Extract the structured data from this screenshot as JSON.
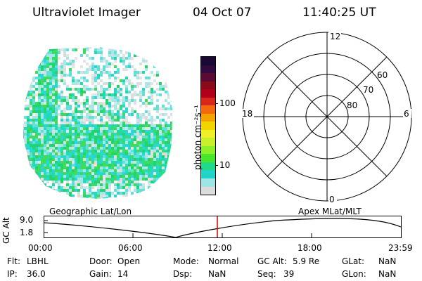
{
  "header": {
    "instrument": "Ultraviolet Imager",
    "date": "04 Oct 07",
    "time": "11:40:25 UT"
  },
  "colorbar": {
    "unit_label": "photon cm⁻²s⁻¹",
    "ticks": [
      "100",
      "10"
    ],
    "colors": [
      "#1a0a33",
      "#330a40",
      "#5a0a33",
      "#8a0a1a",
      "#b3001a",
      "#d9261a",
      "#f26a0d",
      "#f5a300",
      "#f3d400",
      "#f0f02a",
      "#c8f02a",
      "#8ef02a",
      "#48e62a",
      "#22d98a",
      "#22d4c8",
      "#9ee6e6",
      "#dcdcdc"
    ]
  },
  "polar_plot": {
    "mlt_labels": {
      "top": "12",
      "bottom": "0",
      "left": "18",
      "right": "6"
    },
    "lat_labels": [
      "60",
      "70",
      "80"
    ]
  },
  "timeline": {
    "left_title": "Geographic Lat/Lon",
    "right_title": "Apex  MLat/MLT",
    "y_axis_label": "GC Alt",
    "y_ticks": [
      "9.0",
      "1.8"
    ],
    "x_ticks": [
      "00:00",
      "06:00",
      "12:00",
      "18:00",
      "23:59"
    ],
    "current_marker_color": "#d40000"
  },
  "status": {
    "flt": {
      "label": "Flt:",
      "value": "LBHL"
    },
    "ip": {
      "label": "IP:",
      "value": "36.0"
    },
    "door": {
      "label": "Door:",
      "value": "Open"
    },
    "gain": {
      "label": "Gain:",
      "value": "14"
    },
    "mode": {
      "label": "Mode:",
      "value": "Normal"
    },
    "dsp": {
      "label": "Dsp:",
      "value": "NaN"
    },
    "gcalt": {
      "label": "GC Alt:",
      "value": "5.9 Re"
    },
    "seq": {
      "label": "Seq:",
      "value": "39"
    },
    "glat": {
      "label": "GLat:",
      "value": "NaN"
    },
    "glon": {
      "label": "GLon:",
      "value": "NaN"
    }
  }
}
